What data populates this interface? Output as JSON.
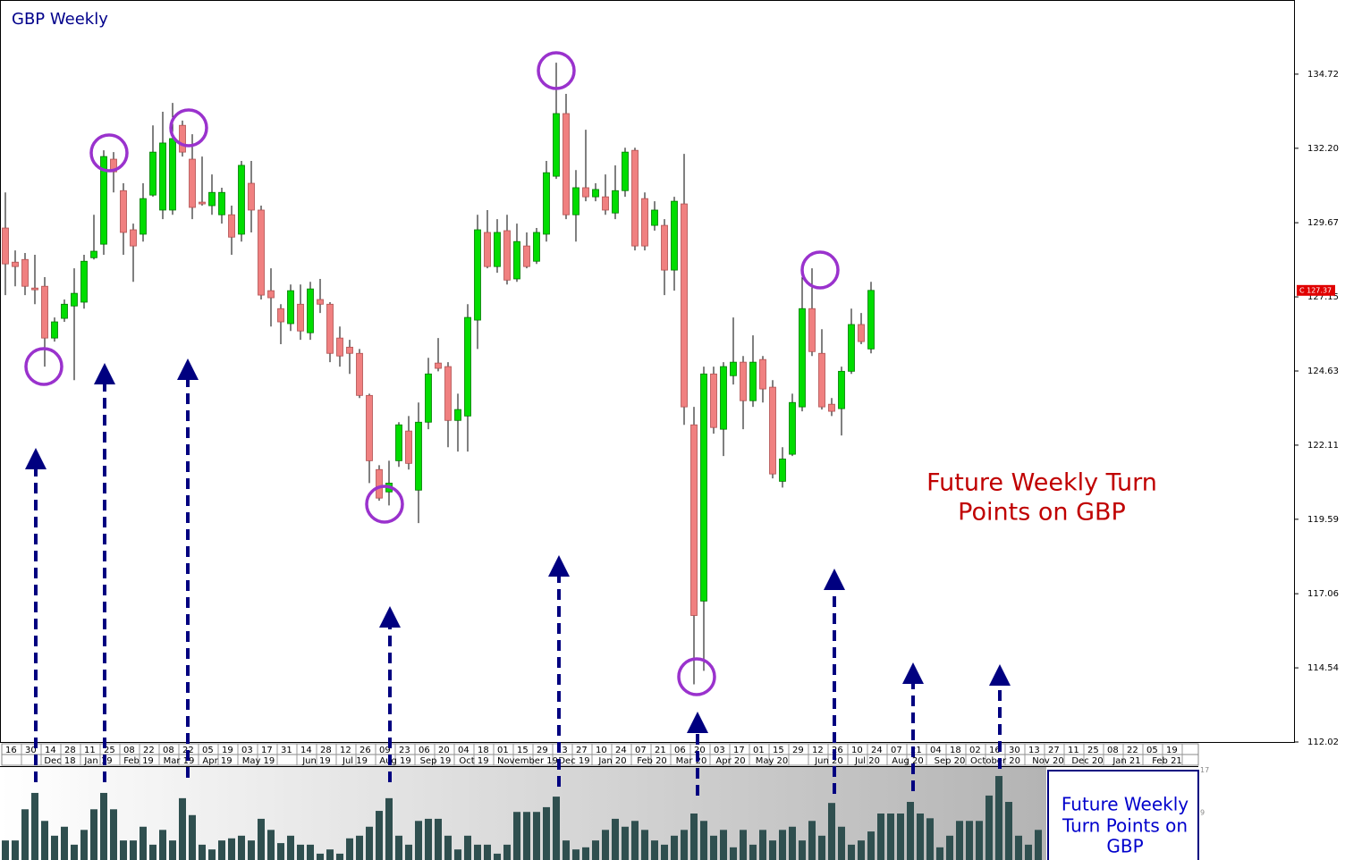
{
  "chart_data": [
    {
      "type": "candlestick",
      "title": "GBP Weekly",
      "series": {
        "open": [
          129.49,
          128.33,
          128.42,
          127.45,
          127.51,
          125.75,
          126.42,
          126.84,
          126.97,
          128.48,
          128.94,
          131.83,
          130.76,
          129.43,
          129.28,
          130.61,
          130.1,
          130.1,
          132.98,
          131.83,
          130.37,
          130.25,
          129.94,
          129.94,
          129.28,
          131.01,
          130.1,
          127.36,
          126.75,
          126.24,
          126.9,
          125.93,
          127.06,
          126.9,
          125.75,
          125.44,
          125.23,
          123.8,
          121.28,
          120.52,
          121.58,
          122.59,
          120.58,
          122.89,
          124.9,
          124.78,
          122.95,
          123.1,
          126.36,
          129.34,
          128.18,
          129.4,
          127.76,
          128.88,
          128.36,
          129.28,
          131.25,
          133.38,
          129.94,
          130.86,
          130.55,
          130.55,
          130.0,
          130.76,
          132.13,
          130.49,
          129.58,
          129.58,
          128.06,
          130.31,
          122.8,
          116.81,
          124.53,
          122.65,
          124.47,
          124.93,
          123.62,
          125.02,
          124.08,
          120.88,
          121.8,
          123.41,
          126.75,
          125.23,
          123.5,
          123.35,
          124.62,
          126.21,
          125.38
        ],
        "high": [
          130.7,
          128.73,
          128.64,
          128.58,
          127.82,
          126.45,
          127.06,
          128.12,
          128.58,
          129.94,
          132.13,
          132.07,
          131.01,
          129.64,
          131.01,
          132.98,
          133.44,
          133.74,
          133.14,
          132.68,
          131.92,
          131.31,
          130.86,
          130.25,
          131.77,
          131.77,
          130.25,
          128.12,
          126.9,
          127.57,
          127.57,
          127.66,
          127.76,
          126.97,
          126.14,
          125.69,
          125.38,
          123.86,
          121.43,
          121.58,
          122.89,
          123.1,
          123.56,
          125.08,
          125.75,
          124.93,
          123.86,
          126.9,
          129.94,
          130.1,
          129.79,
          129.94,
          129.64,
          129.34,
          129.49,
          131.77,
          135.11,
          134.05,
          131.46,
          132.83,
          131.01,
          131.31,
          131.62,
          132.22,
          132.22,
          130.7,
          130.4,
          129.79,
          130.55,
          132.01,
          123.41,
          124.78,
          124.78,
          124.93,
          126.45,
          125.14,
          125.84,
          125.14,
          124.32,
          122.04,
          123.86,
          127.82,
          128.12,
          126.05,
          123.71,
          124.78,
          126.75,
          126.6,
          127.66
        ],
        "low": [
          127.21,
          127.51,
          127.21,
          126.9,
          124.78,
          125.63,
          126.3,
          124.32,
          126.75,
          128.42,
          128.58,
          130.7,
          128.58,
          127.66,
          129.03,
          130.55,
          129.79,
          129.94,
          131.92,
          129.79,
          130.25,
          129.94,
          129.64,
          128.58,
          129.03,
          129.34,
          127.06,
          126.14,
          125.54,
          125.99,
          125.69,
          125.69,
          126.6,
          124.93,
          124.78,
          124.53,
          123.71,
          120.82,
          120.22,
          120.06,
          121.37,
          121.28,
          119.46,
          122.65,
          124.62,
          122.04,
          121.89,
          121.89,
          125.38,
          128.12,
          127.97,
          127.57,
          127.66,
          128.12,
          128.27,
          129.03,
          131.16,
          129.79,
          129.03,
          130.4,
          130.4,
          129.94,
          129.79,
          130.55,
          128.73,
          128.73,
          129.4,
          127.21,
          127.36,
          122.8,
          113.98,
          114.44,
          122.5,
          121.74,
          124.17,
          122.65,
          123.41,
          123.56,
          120.98,
          120.67,
          121.74,
          123.26,
          125.14,
          123.32,
          123.1,
          122.44,
          124.53,
          125.54,
          125.23
        ],
        "close": [
          128.27,
          128.18,
          127.51,
          127.39,
          125.75,
          126.3,
          126.9,
          127.27,
          128.36,
          128.7,
          131.92,
          131.4,
          129.34,
          128.88,
          130.49,
          132.07,
          132.38,
          132.53,
          132.07,
          130.19,
          130.31,
          130.7,
          130.7,
          129.18,
          131.62,
          130.1,
          127.21,
          127.12,
          126.3,
          127.36,
          125.99,
          127.42,
          126.9,
          125.23,
          125.14,
          125.23,
          123.8,
          121.58,
          120.31,
          120.82,
          122.8,
          121.49,
          122.89,
          124.53,
          124.72,
          122.95,
          123.32,
          126.45,
          129.43,
          128.18,
          129.34,
          127.72,
          129.03,
          128.18,
          129.34,
          131.37,
          133.38,
          129.94,
          130.86,
          130.55,
          130.8,
          130.1,
          130.76,
          132.07,
          128.88,
          128.88,
          130.1,
          128.06,
          130.4,
          123.41,
          116.32,
          124.53,
          122.71,
          124.78,
          124.93,
          123.62,
          124.93,
          124.02,
          121.13,
          121.64,
          123.56,
          126.75,
          125.29,
          123.41,
          123.26,
          124.62,
          126.21,
          125.63,
          127.37
        ]
      },
      "up_color": "#00dd00",
      "down_color": "#f08080",
      "ylim": [
        112.02,
        137.24
      ],
      "yticks": [
        134.72,
        {
          "value": 132.2,
          "label": "132.20"
        },
        129.67,
        127.15,
        124.63,
        122.11,
        119.59,
        117.06,
        114.54,
        112.02
      ],
      "last_price": {
        "value": 127.37,
        "label": "C 127.37"
      },
      "x_day_labels": [
        "16",
        "30",
        "14",
        "28",
        "11",
        "25",
        "08",
        "22",
        "08",
        "22",
        "05",
        "19",
        "03",
        "17",
        "31",
        "14",
        "28",
        "12",
        "26",
        "09",
        "23",
        "06",
        "20",
        "04",
        "18",
        "01",
        "15",
        "29",
        "13",
        "27",
        "10",
        "24",
        "07",
        "21",
        "06",
        "20",
        "03",
        "17",
        "01",
        "15",
        "29",
        "12",
        "26",
        "10",
        "24",
        "07",
        "21",
        "04",
        "18",
        "02",
        "16",
        "30",
        "13",
        "27",
        "11",
        "25",
        "08",
        "22",
        "05",
        "19"
      ],
      "x_month_labels": [
        "Dec 18",
        "Jan 19",
        "Feb 19",
        "Mar 19",
        "Apr 19",
        "May 19",
        "Jun 19",
        "Jul 19",
        "Aug 19",
        "Sep 19",
        "Oct 19",
        "November 19",
        "Dec 19",
        "Jan 20",
        "Feb 20",
        "Mar 20",
        "Apr 20",
        "May 20",
        "Jun 20",
        "Jul 20",
        "Aug 20",
        "Sep 20",
        "October 20",
        "Nov 20",
        "Dec 20",
        "Jan 21",
        "Feb 21"
      ],
      "annotation": [
        "Future Weekly Turn",
        "Points on GBP"
      ],
      "box_text": [
        "Future Weekly",
        "Turn Points on",
        "GBP"
      ]
    },
    {
      "type": "bar",
      "color": "#2f4f4f",
      "values": [
        3.7,
        3.7,
        9.6,
        12.7,
        7.4,
        4.6,
        6.3,
        2.9,
        5.7,
        9.6,
        12.7,
        9.6,
        3.7,
        3.7,
        6.3,
        2.9,
        5.7,
        3.7,
        11.7,
        8.5,
        2.9,
        2.0,
        3.7,
        4.1,
        4.6,
        3.7,
        7.8,
        5.7,
        3.2,
        4.6,
        2.9,
        2.9,
        1.2,
        2.0,
        1.2,
        4.1,
        4.6,
        6.3,
        9.3,
        11.7,
        4.6,
        2.9,
        7.4,
        7.8,
        7.8,
        4.6,
        2.0,
        4.6,
        2.9,
        2.9,
        1.2,
        2.9,
        9.1,
        9.1,
        9.1,
        10.0,
        12.0,
        3.7,
        2.0,
        2.4,
        3.7,
        5.7,
        7.8,
        6.3,
        7.4,
        5.7,
        3.7,
        2.9,
        4.6,
        5.7,
        8.8,
        7.4,
        4.6,
        5.7,
        2.4,
        5.7,
        2.9,
        5.7,
        3.7,
        5.7,
        6.3,
        3.7,
        7.4,
        4.6,
        10.8,
        6.3,
        2.9,
        3.7,
        5.4,
        8.8,
        8.8,
        8.8,
        11.0,
        8.8,
        7.9,
        2.4,
        4.6,
        7.4,
        7.4,
        7.4,
        12.2,
        15.9,
        11.0,
        4.6,
        2.9,
        5.7
      ],
      "ylim": [
        0,
        17.6
      ],
      "yticks": [
        9,
        17
      ]
    }
  ]
}
